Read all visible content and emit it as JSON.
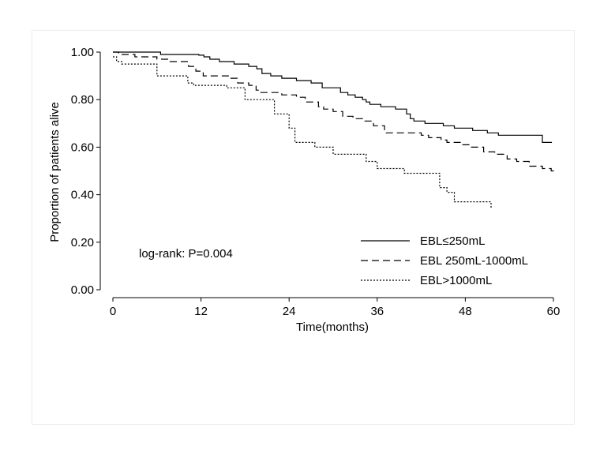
{
  "chart_data": {
    "type": "line",
    "step": true,
    "title": "",
    "xlabel": "Time(months)",
    "ylabel": "Proportion of patients alive",
    "xlim": [
      0,
      60
    ],
    "ylim": [
      0,
      1
    ],
    "x_ticks": [
      "0",
      "12",
      "24",
      "36",
      "48",
      "60"
    ],
    "x_tick_values": [
      0,
      12,
      24,
      36,
      48,
      60
    ],
    "y_ticks": [
      "0.00",
      "0.20",
      "0.40",
      "0.60",
      "0.80",
      "1.00"
    ],
    "y_tick_values": [
      0,
      0.2,
      0.4,
      0.6,
      0.8,
      1.0
    ],
    "grid": false,
    "legend_position": "bottom-right",
    "annotation": "log-rank: P=0.004",
    "series": [
      {
        "name": "EBL≤250mL",
        "style": "solid",
        "points": [
          [
            0,
            1.0
          ],
          [
            6.5,
            0.99
          ],
          [
            11.7,
            0.987
          ],
          [
            12.4,
            0.98
          ],
          [
            13.2,
            0.97
          ],
          [
            14.5,
            0.96
          ],
          [
            16.5,
            0.95
          ],
          [
            18.5,
            0.94
          ],
          [
            19.6,
            0.93
          ],
          [
            20.3,
            0.91
          ],
          [
            21.5,
            0.9
          ],
          [
            23,
            0.89
          ],
          [
            25,
            0.88
          ],
          [
            27,
            0.87
          ],
          [
            28.5,
            0.85
          ],
          [
            31,
            0.83
          ],
          [
            32,
            0.82
          ],
          [
            33,
            0.81
          ],
          [
            34,
            0.8
          ],
          [
            34.5,
            0.79
          ],
          [
            35,
            0.78
          ],
          [
            36.5,
            0.77
          ],
          [
            38.5,
            0.76
          ],
          [
            40,
            0.74
          ],
          [
            40.5,
            0.72
          ],
          [
            41,
            0.71
          ],
          [
            42.5,
            0.7
          ],
          [
            45,
            0.69
          ],
          [
            46.5,
            0.68
          ],
          [
            49,
            0.67
          ],
          [
            51,
            0.66
          ],
          [
            52.5,
            0.65
          ],
          [
            58.5,
            0.62
          ],
          [
            59.8,
            0.62
          ]
        ]
      },
      {
        "name": "EBL 250mL-1000mL",
        "style": "dashed",
        "points": [
          [
            0,
            1.0
          ],
          [
            0.8,
            0.99
          ],
          [
            3,
            0.98
          ],
          [
            6,
            0.97
          ],
          [
            7.8,
            0.96
          ],
          [
            10.3,
            0.94
          ],
          [
            11.3,
            0.92
          ],
          [
            12.3,
            0.9
          ],
          [
            15.8,
            0.89
          ],
          [
            17,
            0.87
          ],
          [
            18.5,
            0.86
          ],
          [
            19.5,
            0.84
          ],
          [
            20,
            0.83
          ],
          [
            23,
            0.82
          ],
          [
            25,
            0.81
          ],
          [
            26.2,
            0.79
          ],
          [
            28,
            0.77
          ],
          [
            28.7,
            0.76
          ],
          [
            30,
            0.75
          ],
          [
            31.3,
            0.73
          ],
          [
            32.7,
            0.72
          ],
          [
            34,
            0.71
          ],
          [
            35.5,
            0.69
          ],
          [
            37,
            0.66
          ],
          [
            42,
            0.65
          ],
          [
            43,
            0.64
          ],
          [
            44.7,
            0.63
          ],
          [
            45.5,
            0.62
          ],
          [
            47.5,
            0.61
          ],
          [
            48.7,
            0.6
          ],
          [
            50.5,
            0.58
          ],
          [
            52,
            0.57
          ],
          [
            53.7,
            0.55
          ],
          [
            55,
            0.54
          ],
          [
            56.7,
            0.52
          ],
          [
            58.5,
            0.51
          ],
          [
            59.7,
            0.5
          ],
          [
            60,
            0.49
          ]
        ]
      },
      {
        "name": "EBL>1000mL",
        "style": "dotted",
        "points": [
          [
            0,
            0.98
          ],
          [
            0.5,
            0.96
          ],
          [
            1.2,
            0.95
          ],
          [
            6,
            0.9
          ],
          [
            10.2,
            0.87
          ],
          [
            11,
            0.86
          ],
          [
            15.5,
            0.85
          ],
          [
            18,
            0.8
          ],
          [
            22,
            0.74
          ],
          [
            24,
            0.68
          ],
          [
            24.8,
            0.62
          ],
          [
            27.5,
            0.6
          ],
          [
            30,
            0.57
          ],
          [
            34.5,
            0.54
          ],
          [
            36,
            0.51
          ],
          [
            39.7,
            0.49
          ],
          [
            44.5,
            0.43
          ],
          [
            45.5,
            0.41
          ],
          [
            46.5,
            0.37
          ],
          [
            51.5,
            0.34
          ]
        ]
      }
    ]
  }
}
